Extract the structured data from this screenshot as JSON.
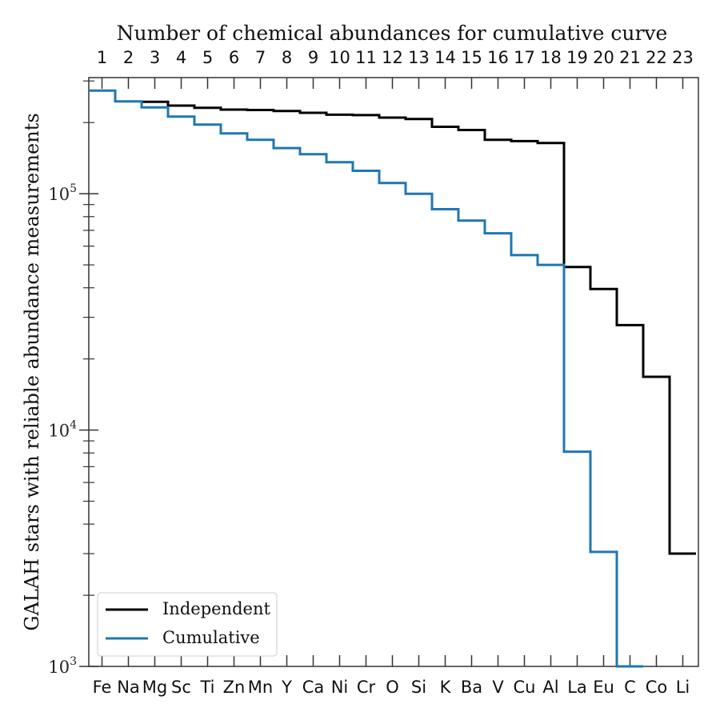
{
  "chart_data": {
    "type": "line",
    "step": "mid",
    "xlabel_top": "Number of chemical abundances for cumulative curve",
    "ylabel": "GALAH stars with reliable abundance measurements",
    "yscale": "log",
    "ylim": [
      1000,
      310000
    ],
    "y_ticks": [
      {
        "value": 1000,
        "base": "10",
        "exp": "3"
      },
      {
        "value": 10000,
        "base": "10",
        "exp": "4"
      },
      {
        "value": 100000,
        "base": "10",
        "exp": "5"
      }
    ],
    "categories": [
      "Fe",
      "Na",
      "Mg",
      "Sc",
      "Ti",
      "Zn",
      "Mn",
      "Y",
      "Ca",
      "Ni",
      "Cr",
      "O",
      "Si",
      "K",
      "Ba",
      "V",
      "Cu",
      "Al",
      "La",
      "Eu",
      "C",
      "Co",
      "Li"
    ],
    "top_ticks": [
      "1",
      "2",
      "3",
      "4",
      "5",
      "6",
      "7",
      "8",
      "9",
      "10",
      "11",
      "12",
      "13",
      "14",
      "15",
      "16",
      "17",
      "18",
      "19",
      "20",
      "21",
      "22",
      "23"
    ],
    "legend_position": "lower-left",
    "series": [
      {
        "name": "Independent",
        "color": "#000000",
        "values": [
          null,
          null,
          245000,
          236000,
          231000,
          227000,
          226000,
          224000,
          220000,
          216000,
          215000,
          210000,
          207000,
          192000,
          186000,
          169000,
          167000,
          164000,
          49000,
          39500,
          27800,
          16800,
          3000
        ]
      },
      {
        "name": "Cumulative",
        "color": "#1f77b4",
        "values": [
          273000,
          246000,
          232000,
          212000,
          196000,
          180000,
          169000,
          156000,
          147000,
          136000,
          125000,
          111000,
          100000,
          86000,
          77000,
          68000,
          55000,
          50000,
          8100,
          3050,
          1000,
          null,
          null
        ]
      }
    ]
  }
}
